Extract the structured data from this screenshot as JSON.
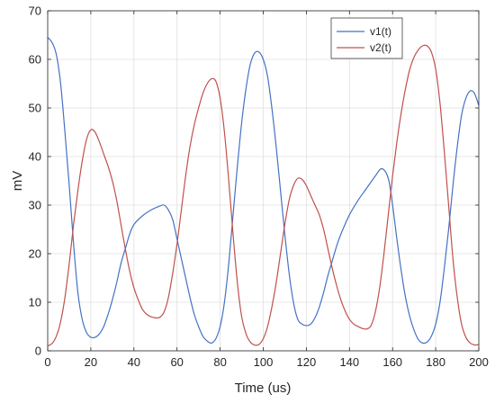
{
  "chart_data": {
    "type": "line",
    "title": "",
    "xlabel": "Time (us)",
    "ylabel": "mV",
    "xlim": [
      0,
      200
    ],
    "ylim": [
      0,
      70
    ],
    "xticks": [
      0,
      20,
      40,
      60,
      80,
      100,
      120,
      140,
      160,
      180,
      200
    ],
    "yticks": [
      0,
      10,
      20,
      30,
      40,
      50,
      60,
      70
    ],
    "grid": true,
    "legend_position": "top-right",
    "series": [
      {
        "name": "v1(t)",
        "color": "#4472c4",
        "points": [
          [
            0,
            64.5
          ],
          [
            2,
            63.5
          ],
          [
            4,
            61
          ],
          [
            6,
            55
          ],
          [
            8,
            45
          ],
          [
            10,
            34
          ],
          [
            12,
            22
          ],
          [
            14,
            12
          ],
          [
            16,
            6.5
          ],
          [
            18,
            3.8
          ],
          [
            20,
            2.8
          ],
          [
            22,
            2.8
          ],
          [
            24,
            3.5
          ],
          [
            26,
            5
          ],
          [
            28,
            7.5
          ],
          [
            30,
            10.5
          ],
          [
            32,
            14
          ],
          [
            34,
            18
          ],
          [
            36,
            21
          ],
          [
            38,
            24
          ],
          [
            40,
            26
          ],
          [
            44,
            27.8
          ],
          [
            48,
            29
          ],
          [
            52,
            29.8
          ],
          [
            54,
            30
          ],
          [
            56,
            29
          ],
          [
            58,
            27
          ],
          [
            60,
            23
          ],
          [
            62,
            19
          ],
          [
            64,
            15
          ],
          [
            66,
            11
          ],
          [
            68,
            7.5
          ],
          [
            70,
            5
          ],
          [
            72,
            3
          ],
          [
            74,
            2
          ],
          [
            76,
            1.6
          ],
          [
            78,
            2.5
          ],
          [
            80,
            5
          ],
          [
            82,
            10
          ],
          [
            84,
            18
          ],
          [
            86,
            28
          ],
          [
            88,
            38
          ],
          [
            90,
            47
          ],
          [
            92,
            54
          ],
          [
            94,
            59
          ],
          [
            96,
            61.3
          ],
          [
            98,
            61.5
          ],
          [
            100,
            60
          ],
          [
            102,
            56.5
          ],
          [
            104,
            50
          ],
          [
            106,
            42
          ],
          [
            108,
            33
          ],
          [
            110,
            24
          ],
          [
            112,
            16
          ],
          [
            114,
            10
          ],
          [
            116,
            6.5
          ],
          [
            118,
            5.5
          ],
          [
            120,
            5.2
          ],
          [
            122,
            5.5
          ],
          [
            124,
            6.8
          ],
          [
            126,
            9
          ],
          [
            128,
            12
          ],
          [
            130,
            15.5
          ],
          [
            132,
            18.5
          ],
          [
            134,
            21.5
          ],
          [
            136,
            24
          ],
          [
            140,
            28
          ],
          [
            144,
            31
          ],
          [
            148,
            33.5
          ],
          [
            152,
            36
          ],
          [
            155,
            37.5
          ],
          [
            158,
            35.5
          ],
          [
            160,
            30
          ],
          [
            162,
            23
          ],
          [
            164,
            16.5
          ],
          [
            166,
            11
          ],
          [
            168,
            7
          ],
          [
            170,
            4.2
          ],
          [
            172,
            2.3
          ],
          [
            174,
            1.6
          ],
          [
            176,
            1.8
          ],
          [
            178,
            3
          ],
          [
            180,
            5.5
          ],
          [
            182,
            10
          ],
          [
            184,
            17
          ],
          [
            186,
            25
          ],
          [
            188,
            34
          ],
          [
            190,
            42
          ],
          [
            192,
            48.5
          ],
          [
            194,
            52
          ],
          [
            196,
            53.5
          ],
          [
            198,
            53
          ],
          [
            200,
            50.5
          ]
        ]
      },
      {
        "name": "v2(t)",
        "color": "#c0504d",
        "points": [
          [
            0,
            1
          ],
          [
            2,
            1.5
          ],
          [
            4,
            3
          ],
          [
            6,
            6
          ],
          [
            8,
            11
          ],
          [
            10,
            18
          ],
          [
            12,
            26
          ],
          [
            14,
            33
          ],
          [
            16,
            39
          ],
          [
            18,
            43.5
          ],
          [
            20,
            45.5
          ],
          [
            22,
            45
          ],
          [
            24,
            43
          ],
          [
            26,
            40.5
          ],
          [
            28,
            38
          ],
          [
            30,
            35
          ],
          [
            32,
            31
          ],
          [
            34,
            26
          ],
          [
            36,
            21
          ],
          [
            38,
            16.5
          ],
          [
            40,
            13
          ],
          [
            42,
            10.5
          ],
          [
            44,
            8.5
          ],
          [
            46,
            7.5
          ],
          [
            48,
            7
          ],
          [
            50,
            6.8
          ],
          [
            52,
            6.9
          ],
          [
            54,
            8
          ],
          [
            56,
            11
          ],
          [
            58,
            16
          ],
          [
            60,
            22
          ],
          [
            62,
            29
          ],
          [
            64,
            36
          ],
          [
            66,
            42
          ],
          [
            68,
            46.5
          ],
          [
            70,
            50
          ],
          [
            72,
            53
          ],
          [
            74,
            55
          ],
          [
            76,
            56
          ],
          [
            78,
            55.5
          ],
          [
            80,
            52
          ],
          [
            82,
            45
          ],
          [
            84,
            35
          ],
          [
            86,
            24
          ],
          [
            88,
            14
          ],
          [
            90,
            7
          ],
          [
            92,
            3.5
          ],
          [
            94,
            1.8
          ],
          [
            96,
            1.2
          ],
          [
            98,
            1.3
          ],
          [
            100,
            2.5
          ],
          [
            102,
            5
          ],
          [
            104,
            9
          ],
          [
            106,
            14
          ],
          [
            108,
            20
          ],
          [
            110,
            26
          ],
          [
            112,
            31
          ],
          [
            114,
            34
          ],
          [
            116,
            35.5
          ],
          [
            118,
            35.3
          ],
          [
            120,
            34
          ],
          [
            122,
            32
          ],
          [
            124,
            30
          ],
          [
            126,
            28
          ],
          [
            128,
            25
          ],
          [
            130,
            21
          ],
          [
            132,
            17
          ],
          [
            134,
            13.5
          ],
          [
            136,
            10.5
          ],
          [
            138,
            8.2
          ],
          [
            140,
            6.5
          ],
          [
            142,
            5.5
          ],
          [
            144,
            5
          ],
          [
            146,
            4.6
          ],
          [
            148,
            4.5
          ],
          [
            150,
            5.2
          ],
          [
            152,
            8
          ],
          [
            154,
            13
          ],
          [
            156,
            20
          ],
          [
            158,
            28
          ],
          [
            160,
            36
          ],
          [
            162,
            43
          ],
          [
            164,
            49
          ],
          [
            166,
            54
          ],
          [
            168,
            58
          ],
          [
            170,
            60.5
          ],
          [
            172,
            62
          ],
          [
            174,
            62.8
          ],
          [
            176,
            62.8
          ],
          [
            178,
            61.5
          ],
          [
            180,
            58
          ],
          [
            182,
            51
          ],
          [
            184,
            41
          ],
          [
            186,
            30
          ],
          [
            188,
            19
          ],
          [
            190,
            11
          ],
          [
            192,
            5.5
          ],
          [
            194,
            2.8
          ],
          [
            196,
            1.6
          ],
          [
            198,
            1.2
          ],
          [
            200,
            1.3
          ]
        ]
      }
    ]
  }
}
